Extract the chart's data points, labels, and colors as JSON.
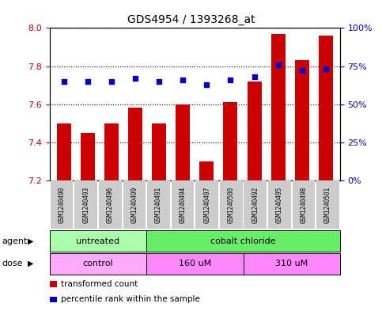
{
  "title": "GDS4954 / 1393268_at",
  "samples": [
    "GSM1240490",
    "GSM1240493",
    "GSM1240496",
    "GSM1240499",
    "GSM1240491",
    "GSM1240494",
    "GSM1240497",
    "GSM1240500",
    "GSM1240492",
    "GSM1240495",
    "GSM1240498",
    "GSM1240501"
  ],
  "red_values": [
    7.5,
    7.45,
    7.5,
    7.58,
    7.5,
    7.6,
    7.3,
    7.61,
    7.72,
    7.97,
    7.83,
    7.96
  ],
  "blue_values": [
    65,
    65,
    65,
    67,
    65,
    66,
    63,
    66,
    68,
    76,
    72,
    73
  ],
  "ylim_left": [
    7.2,
    8.0
  ],
  "ylim_right": [
    0,
    100
  ],
  "yticks_left": [
    7.2,
    7.4,
    7.6,
    7.8,
    8.0
  ],
  "yticks_right": [
    0,
    25,
    50,
    75,
    100
  ],
  "ytick_labels_right": [
    "0%",
    "25%",
    "50%",
    "75%",
    "100%"
  ],
  "bar_color": "#cc0000",
  "dot_color": "#0000cc",
  "left_axis_color": "#cc0000",
  "right_axis_color": "#0000cc",
  "agent_groups": [
    {
      "label": "untreated",
      "start": 0,
      "end": 4,
      "color": "#aaffaa"
    },
    {
      "label": "cobalt chloride",
      "start": 4,
      "end": 12,
      "color": "#66ee66"
    }
  ],
  "dose_groups": [
    {
      "label": "control",
      "start": 0,
      "end": 4,
      "color": "#ffaaff"
    },
    {
      "label": "160 uM",
      "start": 4,
      "end": 8,
      "color": "#ff88ff"
    },
    {
      "label": "310 uM",
      "start": 8,
      "end": 12,
      "color": "#ff88ff"
    }
  ],
  "legend_items": [
    {
      "color": "#cc0000",
      "label": "transformed count"
    },
    {
      "color": "#0000cc",
      "label": "percentile rank within the sample"
    }
  ],
  "agent_label": "agent",
  "dose_label": "dose",
  "ticklabel_bg": "#cccccc"
}
